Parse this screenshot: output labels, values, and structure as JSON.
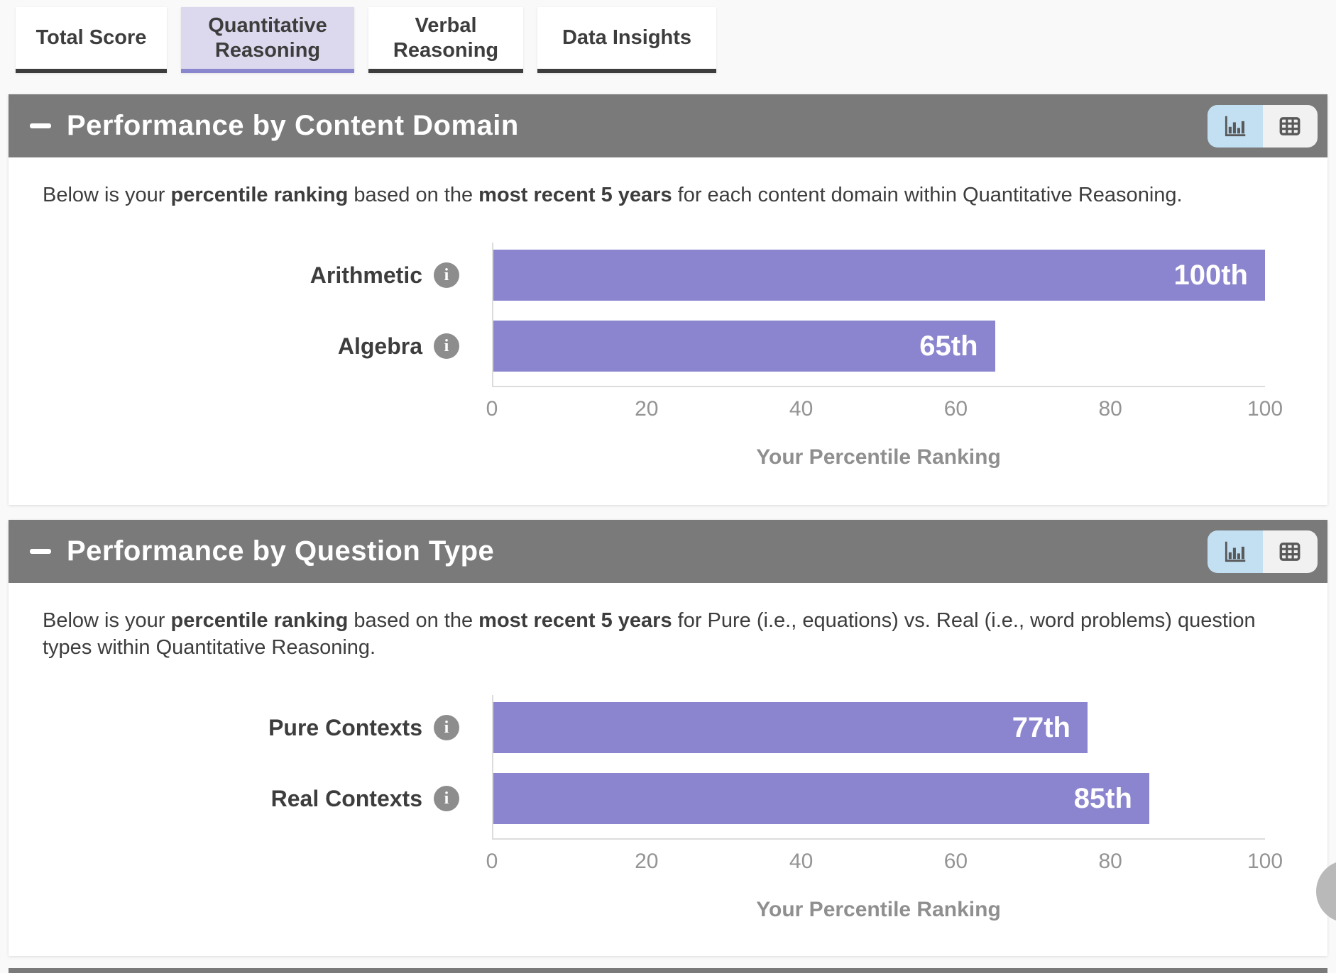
{
  "tabs": {
    "items": [
      {
        "label": "Total Score",
        "selected": false
      },
      {
        "label": "Quantitative Reasoning",
        "selected": true
      },
      {
        "label": "Verbal Reasoning",
        "selected": false
      },
      {
        "label": "Data Insights",
        "selected": false
      }
    ]
  },
  "sections": [
    {
      "title": "Performance by Content Domain",
      "view_toggle": {
        "chart_selected": true,
        "table_selected": false
      },
      "description": [
        {
          "text": "Below is your ",
          "bold": false
        },
        {
          "text": "percentile ranking",
          "bold": true
        },
        {
          "text": " based on the ",
          "bold": false
        },
        {
          "text": "most recent 5 years",
          "bold": true
        },
        {
          "text": " for each content domain within Quantitative Reasoning.",
          "bold": false
        }
      ]
    },
    {
      "title": "Performance by Question Type",
      "view_toggle": {
        "chart_selected": true,
        "table_selected": false
      },
      "description": [
        {
          "text": "Below is your ",
          "bold": false
        },
        {
          "text": "percentile ranking",
          "bold": true
        },
        {
          "text": " based on the ",
          "bold": false
        },
        {
          "text": "most recent 5 years",
          "bold": true
        },
        {
          "text": " for Pure (i.e., equations) vs. Real (i.e., word problems) question types within Quantitative Reasoning.",
          "bold": false
        }
      ]
    }
  ],
  "chart_data": [
    {
      "type": "bar",
      "orientation": "horizontal",
      "title": "Performance by Content Domain",
      "categories": [
        "Arithmetic",
        "Algebra"
      ],
      "values": [
        100,
        65
      ],
      "value_labels": [
        "100th",
        "65th"
      ],
      "xlabel": "Your Percentile Ranking",
      "xlim": [
        0,
        100
      ],
      "ticks": [
        "0",
        "20",
        "40",
        "60",
        "80",
        "100"
      ],
      "bar_color": "#8a85ce",
      "grid": false,
      "legend": false
    },
    {
      "type": "bar",
      "orientation": "horizontal",
      "title": "Performance by Question Type",
      "categories": [
        "Pure Contexts",
        "Real Contexts"
      ],
      "values": [
        77,
        85
      ],
      "value_labels": [
        "77th",
        "85th"
      ],
      "xlabel": "Your Percentile Ranking",
      "xlim": [
        0,
        100
      ],
      "ticks": [
        "0",
        "20",
        "40",
        "60",
        "80",
        "100"
      ],
      "bar_color": "#8a85ce",
      "grid": false,
      "legend": false
    }
  ],
  "colors": {
    "bar": "#8a85ce",
    "section_header_bg": "#7a7a7a",
    "selected_tab_bg": "#dcd9ee",
    "selected_tab_underline": "#8a87cf",
    "tab_underline": "#3d3d3d",
    "toggle_active_bg": "#c2e0f2",
    "page_bg": "#f9f9f9"
  },
  "icons": {
    "collapse": "minus-icon",
    "chart_view": "bar-chart-icon",
    "table_view": "table-icon",
    "info": "info-icon"
  }
}
